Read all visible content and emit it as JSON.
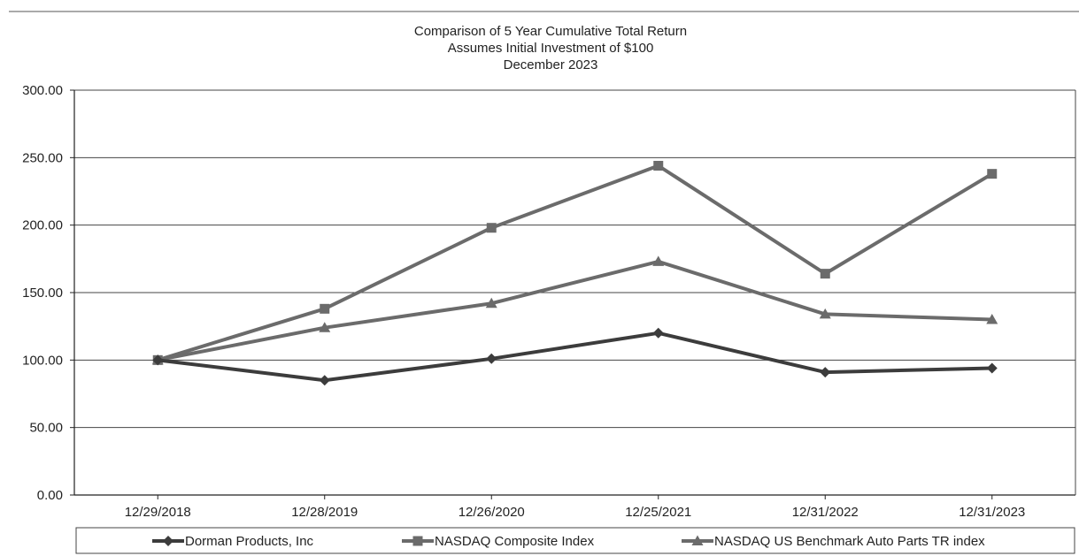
{
  "chart_data": {
    "type": "line",
    "title_lines": [
      "Comparison of 5 Year Cumulative Total Return",
      "Assumes Initial Investment of $100",
      "December 2023"
    ],
    "categories": [
      "12/29/2018",
      "12/28/2019",
      "12/26/2020",
      "12/25/2021",
      "12/31/2022",
      "12/31/2023"
    ],
    "ylim": [
      0,
      300
    ],
    "yticks": [
      "0.00",
      "50.00",
      "100.00",
      "150.00",
      "200.00",
      "250.00",
      "300.00"
    ],
    "grid": true,
    "legend_position": "bottom",
    "series": [
      {
        "name": "Dorman Products, Inc",
        "marker": "diamond",
        "color": "#3c3c3c",
        "values": [
          100,
          85,
          101,
          120,
          91,
          94
        ]
      },
      {
        "name": "NASDAQ Composite Index",
        "marker": "square",
        "color": "#6b6b6b",
        "values": [
          100,
          138,
          198,
          244,
          164,
          238
        ]
      },
      {
        "name": "NASDAQ US Benchmark Auto Parts TR index",
        "marker": "triangle",
        "color": "#6b6b6b",
        "values": [
          100,
          124,
          142,
          173,
          134,
          130
        ]
      }
    ]
  }
}
